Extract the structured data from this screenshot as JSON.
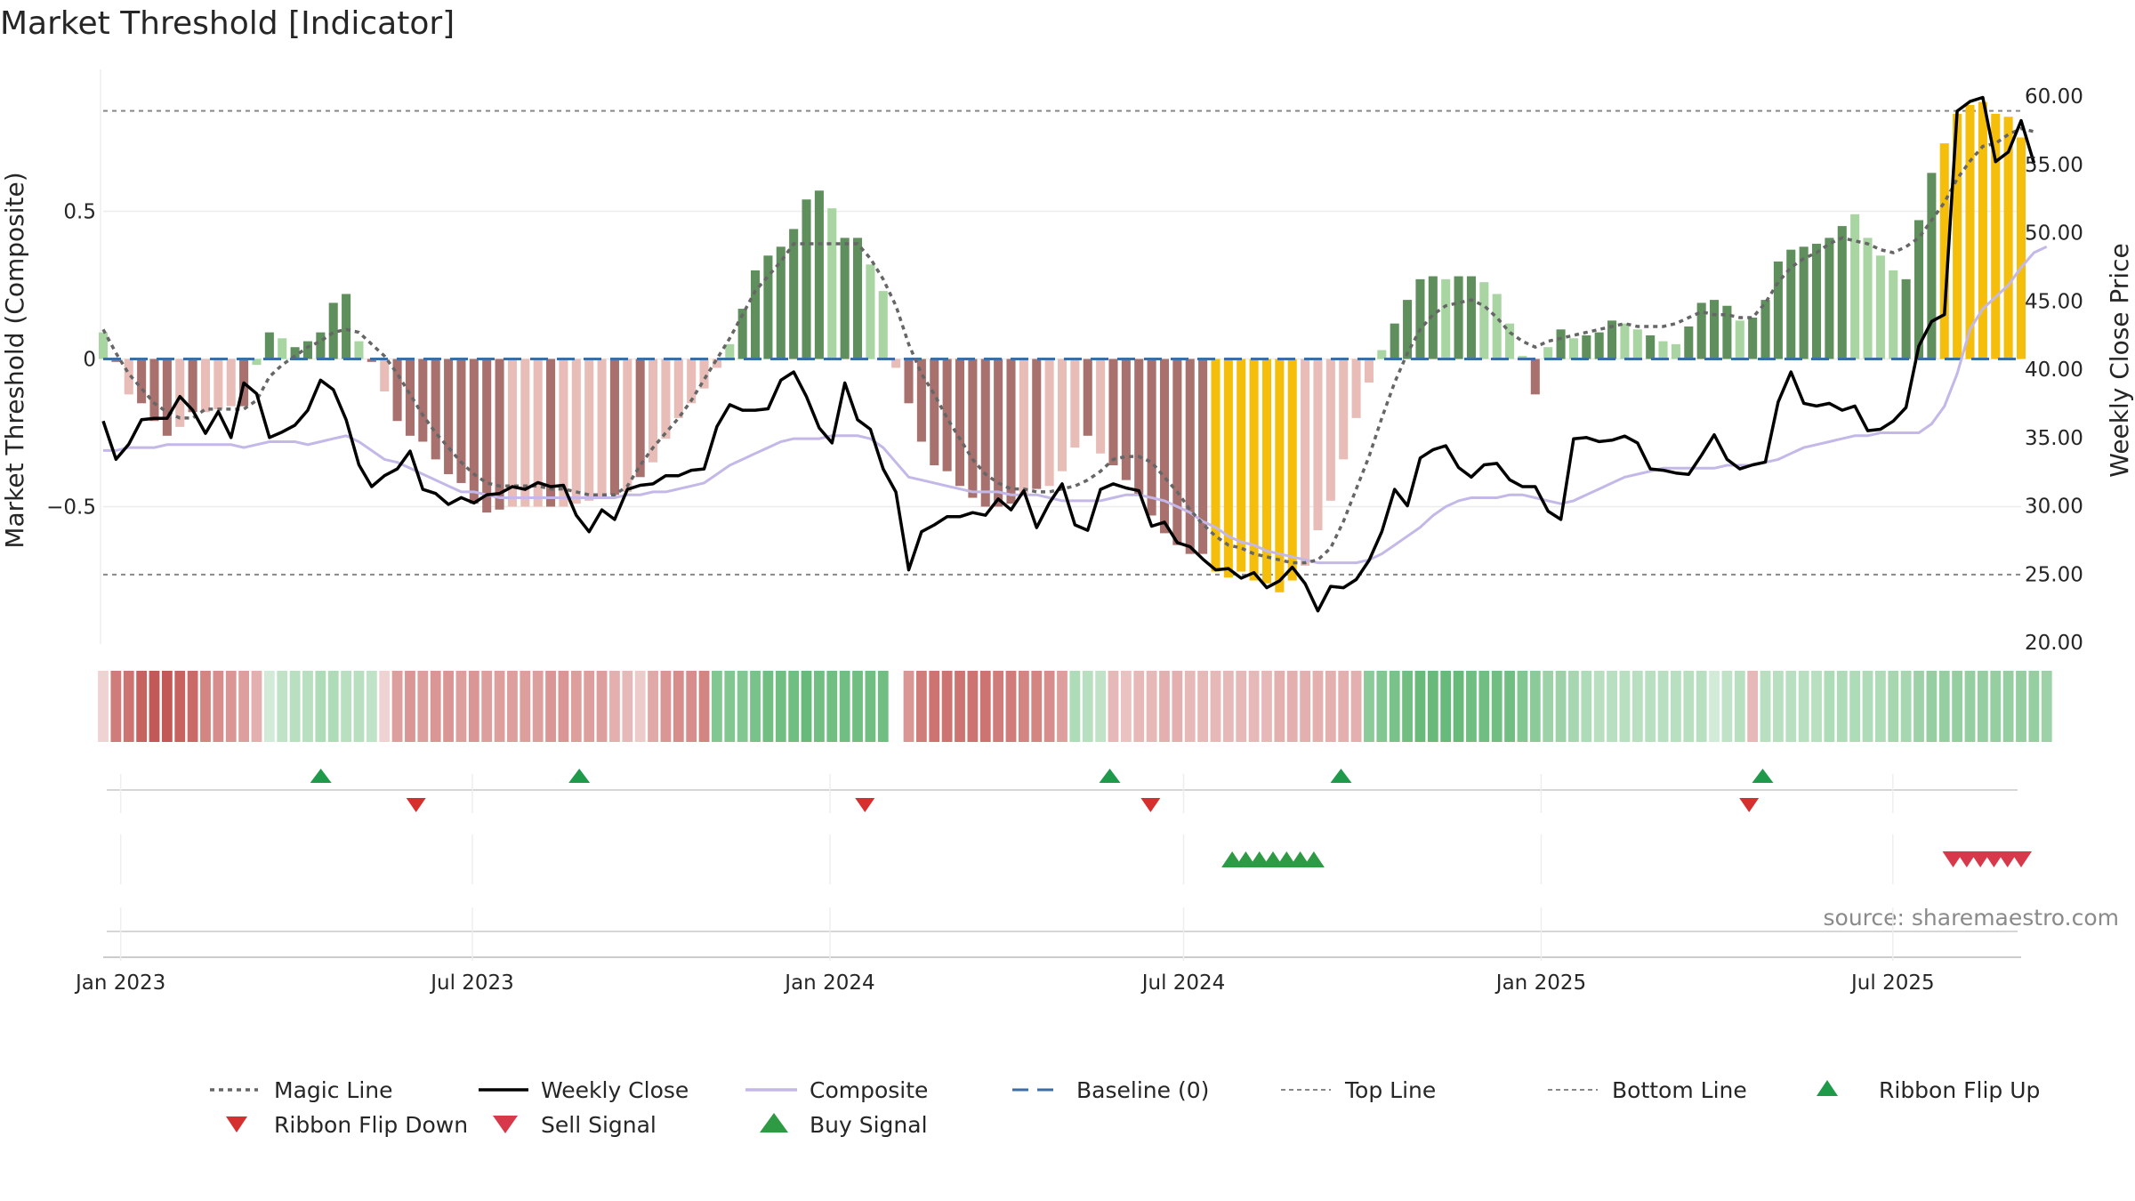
{
  "chart_data": {
    "type": "bar",
    "title": "Market Threshold [Indicator]",
    "ylabel_left": "Market Threshold (Composite)",
    "ylabel_right": "Weekly Close Price",
    "source": "source: sharemaestro.com",
    "x_start": "2022-12-23",
    "x_end": "2025-09-05",
    "xticks": [
      {
        "date": "2023-01-01",
        "label": "Jan 2023"
      },
      {
        "date": "2023-07-01",
        "label": "Jul 2023"
      },
      {
        "date": "2024-01-01",
        "label": "Jan 2024"
      },
      {
        "date": "2024-07-01",
        "label": "Jul 2024"
      },
      {
        "date": "2025-01-01",
        "label": "Jan 2025"
      },
      {
        "date": "2025-07-01",
        "label": "Jul 2025"
      }
    ],
    "ylim_left": [
      -0.98,
      0.98
    ],
    "yticks_left": [
      {
        "value": 0.5,
        "label": "0.5"
      },
      {
        "value": 0,
        "label": "0"
      },
      {
        "value": -0.5,
        "label": "−0.5"
      }
    ],
    "ylim_right": [
      20,
      60
    ],
    "yticks_right": [
      {
        "value": 60,
        "label": "60.00"
      },
      {
        "value": 55,
        "label": "55.00"
      },
      {
        "value": 50,
        "label": "50.00"
      },
      {
        "value": 45,
        "label": "45.00"
      },
      {
        "value": 40,
        "label": "40.00"
      },
      {
        "value": 35,
        "label": "35.00"
      },
      {
        "value": 30,
        "label": "30.00"
      },
      {
        "value": 25,
        "label": "25.00"
      },
      {
        "value": 20,
        "label": "20.00"
      }
    ],
    "top_line": 0.84,
    "bottom_line": -0.73,
    "colors": {
      "dark_green": "#5f8f5c",
      "light_green": "#a8d5a2",
      "dark_red": "#a8716e",
      "light_red": "#e8bdb8",
      "yellow": "#f5be0b",
      "composite": "#c3b8e8",
      "magic": "#666666",
      "close": "#000000",
      "baseline": "#3a6ea5",
      "flip_up": "#1f9a4a",
      "flip_down": "#d62f2f",
      "sell": "#d8394a",
      "buy": "#2e9a44"
    },
    "composite_bars": [
      0.09,
      -0.01,
      -0.12,
      -0.15,
      -0.21,
      -0.26,
      -0.23,
      -0.18,
      -0.18,
      -0.17,
      -0.16,
      -0.16,
      -0.02,
      0.09,
      0.07,
      0.04,
      0.06,
      0.09,
      0.19,
      0.22,
      0.06,
      -0.01,
      -0.11,
      -0.21,
      -0.26,
      -0.28,
      -0.34,
      -0.39,
      -0.42,
      -0.49,
      -0.52,
      -0.51,
      -0.5,
      -0.5,
      -0.5,
      -0.5,
      -0.5,
      -0.49,
      -0.48,
      -0.47,
      -0.46,
      -0.45,
      -0.4,
      -0.35,
      -0.27,
      -0.2,
      -0.15,
      -0.1,
      -0.03,
      0.05,
      0.17,
      0.3,
      0.35,
      0.38,
      0.44,
      0.54,
      0.57,
      0.51,
      0.41,
      0.41,
      0.32,
      0.23,
      -0.03,
      -0.15,
      -0.28,
      -0.36,
      -0.38,
      -0.43,
      -0.47,
      -0.5,
      -0.5,
      -0.49,
      -0.46,
      -0.44,
      -0.43,
      -0.38,
      -0.3,
      -0.26,
      -0.32,
      -0.36,
      -0.41,
      -0.46,
      -0.53,
      -0.59,
      -0.63,
      -0.66,
      -0.66,
      -0.72,
      -0.74,
      -0.72,
      -0.75,
      -0.76,
      -0.79,
      -0.75,
      -0.7,
      -0.58,
      -0.48,
      -0.34,
      -0.2,
      -0.08,
      0.03,
      0.12,
      0.2,
      0.27,
      0.28,
      0.27,
      0.28,
      0.28,
      0.26,
      0.22,
      0.12,
      0.01,
      -0.12,
      0.04,
      0.1,
      0.07,
      0.08,
      0.09,
      0.13,
      0.12,
      0.1,
      0.08,
      0.06,
      0.05,
      0.11,
      0.19,
      0.2,
      0.18,
      0.13,
      0.14,
      0.2,
      0.33,
      0.37,
      0.38,
      0.39,
      0.41,
      0.45,
      0.49,
      0.41,
      0.35,
      0.3,
      0.27,
      0.47,
      0.63,
      0.73,
      0.83,
      0.86,
      0.87,
      0.83,
      0.82,
      0.75
    ],
    "bar_classes": [
      "lg",
      "dr",
      "lr",
      "dr",
      "dr",
      "dr",
      "lr",
      "dr",
      "lr",
      "lr",
      "lr",
      "dr",
      "lg",
      "dg",
      "lg",
      "dg",
      "dg",
      "dg",
      "dg",
      "dg",
      "lg",
      "dr",
      "lr",
      "dr",
      "dr",
      "dr",
      "dr",
      "dr",
      "dr",
      "dr",
      "dr",
      "dr",
      "lr",
      "lr",
      "lr",
      "dr",
      "lr",
      "lr",
      "lr",
      "lr",
      "dr",
      "lr",
      "dr",
      "lr",
      "lr",
      "lr",
      "lr",
      "lr",
      "lr",
      "lg",
      "dg",
      "dg",
      "dg",
      "dg",
      "dg",
      "dg",
      "dg",
      "lg",
      "dg",
      "dg",
      "lg",
      "lg",
      "lr",
      "dr",
      "dr",
      "dr",
      "dr",
      "dr",
      "dr",
      "dr",
      "dr",
      "dr",
      "lr",
      "dr",
      "lr",
      "lr",
      "lr",
      "dr",
      "lr",
      "dr",
      "dr",
      "dr",
      "dr",
      "dr",
      "dr",
      "dr",
      "dr",
      "y",
      "y",
      "y",
      "y",
      "y",
      "y",
      "y",
      "lr",
      "lr",
      "lr",
      "lr",
      "lr",
      "lr",
      "lg",
      "dg",
      "dg",
      "dg",
      "dg",
      "lg",
      "dg",
      "dg",
      "lg",
      "lg",
      "lg",
      "lg",
      "dr",
      "lg",
      "dg",
      "lg",
      "dg",
      "dg",
      "dg",
      "lg",
      "lg",
      "dg",
      "lg",
      "lg",
      "dg",
      "dg",
      "dg",
      "dg",
      "lg",
      "dg",
      "dg",
      "dg",
      "dg",
      "dg",
      "dg",
      "dg",
      "dg",
      "lg",
      "lg",
      "lg",
      "lg",
      "dg",
      "dg",
      "dg",
      "y",
      "y",
      "y",
      "y",
      "y",
      "y",
      "y",
      "lg"
    ],
    "weekly_close": [
      36.2,
      33.4,
      34.5,
      36.3,
      36.4,
      36.4,
      38.0,
      37.0,
      35.3,
      36.9,
      35.0,
      39.0,
      38.2,
      35.0,
      35.4,
      35.9,
      37.0,
      39.2,
      38.5,
      36.3,
      33.0,
      31.4,
      32.2,
      32.7,
      34.0,
      31.2,
      30.9,
      30.1,
      30.6,
      30.2,
      30.8,
      30.9,
      31.4,
      31.2,
      31.7,
      31.4,
      31.5,
      29.3,
      28.1,
      29.7,
      29.0,
      31.2,
      31.5,
      31.6,
      32.2,
      32.2,
      32.6,
      32.7,
      35.8,
      37.4,
      37.0,
      37.0,
      37.1,
      39.2,
      39.8,
      38.0,
      35.7,
      34.6,
      39.0,
      36.3,
      35.6,
      32.7,
      31.0,
      25.3,
      28.1,
      28.6,
      29.2,
      29.2,
      29.5,
      29.3,
      30.5,
      29.7,
      31.1,
      28.4,
      30.2,
      31.6,
      28.6,
      28.2,
      31.2,
      31.6,
      31.3,
      31.1,
      28.5,
      28.8,
      27.3,
      27.0,
      26.1,
      25.3,
      25.4,
      24.7,
      25.1,
      24.0,
      24.5,
      25.5,
      24.3,
      22.3,
      24.1,
      24.0,
      24.6,
      26.0,
      28.1,
      31.2,
      30.0,
      33.5,
      34.1,
      34.4,
      32.8,
      32.1,
      33.0,
      33.1,
      31.9,
      31.4,
      31.4,
      29.6,
      29.0,
      34.9,
      35.0,
      34.7,
      34.8,
      35.1,
      34.6,
      32.7,
      32.6,
      32.4,
      32.3,
      33.7,
      35.2,
      33.4,
      32.7,
      33.0,
      33.2,
      37.6,
      39.8,
      37.5,
      37.3,
      37.5,
      37.0,
      37.3,
      35.5,
      35.6,
      36.2,
      37.2,
      41.7,
      43.5,
      44.0,
      58.9,
      59.6,
      59.9,
      55.2,
      55.9,
      58.2,
      55.1
    ],
    "composite_line": [
      -0.31,
      -0.31,
      -0.3,
      -0.3,
      -0.3,
      -0.29,
      -0.29,
      -0.29,
      -0.29,
      -0.29,
      -0.29,
      -0.3,
      -0.29,
      -0.28,
      -0.28,
      -0.28,
      -0.29,
      -0.28,
      -0.27,
      -0.26,
      -0.28,
      -0.31,
      -0.34,
      -0.35,
      -0.37,
      -0.39,
      -0.41,
      -0.43,
      -0.45,
      -0.45,
      -0.46,
      -0.47,
      -0.47,
      -0.47,
      -0.47,
      -0.47,
      -0.47,
      -0.47,
      -0.47,
      -0.47,
      -0.47,
      -0.46,
      -0.46,
      -0.45,
      -0.45,
      -0.44,
      -0.43,
      -0.42,
      -0.39,
      -0.36,
      -0.34,
      -0.32,
      -0.3,
      -0.28,
      -0.27,
      -0.27,
      -0.27,
      -0.26,
      -0.26,
      -0.26,
      -0.27,
      -0.3,
      -0.35,
      -0.4,
      -0.41,
      -0.42,
      -0.43,
      -0.44,
      -0.45,
      -0.45,
      -0.45,
      -0.46,
      -0.46,
      -0.46,
      -0.47,
      -0.48,
      -0.48,
      -0.48,
      -0.48,
      -0.47,
      -0.46,
      -0.46,
      -0.47,
      -0.48,
      -0.5,
      -0.52,
      -0.55,
      -0.57,
      -0.6,
      -0.62,
      -0.63,
      -0.65,
      -0.66,
      -0.67,
      -0.68,
      -0.69,
      -0.69,
      -0.69,
      -0.69,
      -0.68,
      -0.66,
      -0.63,
      -0.6,
      -0.57,
      -0.53,
      -0.5,
      -0.48,
      -0.47,
      -0.47,
      -0.47,
      -0.46,
      -0.46,
      -0.47,
      -0.48,
      -0.49,
      -0.48,
      -0.46,
      -0.44,
      -0.42,
      -0.4,
      -0.39,
      -0.38,
      -0.37,
      -0.37,
      -0.37,
      -0.37,
      -0.37,
      -0.36,
      -0.36,
      -0.36,
      -0.35,
      -0.34,
      -0.32,
      -0.3,
      -0.29,
      -0.28,
      -0.27,
      -0.26,
      -0.26,
      -0.25,
      -0.25,
      -0.25,
      -0.25,
      -0.22,
      -0.16,
      -0.05,
      0.1,
      0.17,
      0.21,
      0.25,
      0.31,
      0.36,
      0.38
    ],
    "magic_line": [
      0.1,
      0.02,
      -0.05,
      -0.1,
      -0.15,
      -0.18,
      -0.2,
      -0.2,
      -0.17,
      -0.17,
      -0.17,
      -0.17,
      -0.14,
      -0.06,
      -0.02,
      0.01,
      0.04,
      0.06,
      0.09,
      0.1,
      0.09,
      0.05,
      0.01,
      -0.05,
      -0.12,
      -0.19,
      -0.25,
      -0.3,
      -0.35,
      -0.39,
      -0.42,
      -0.43,
      -0.43,
      -0.43,
      -0.43,
      -0.44,
      -0.44,
      -0.45,
      -0.46,
      -0.46,
      -0.46,
      -0.43,
      -0.36,
      -0.3,
      -0.25,
      -0.2,
      -0.14,
      -0.07,
      0.0,
      0.07,
      0.15,
      0.23,
      0.28,
      0.33,
      0.39,
      0.39,
      0.39,
      0.39,
      0.39,
      0.39,
      0.34,
      0.27,
      0.18,
      0.05,
      -0.05,
      -0.12,
      -0.2,
      -0.27,
      -0.34,
      -0.39,
      -0.42,
      -0.44,
      -0.44,
      -0.45,
      -0.45,
      -0.44,
      -0.43,
      -0.41,
      -0.38,
      -0.34,
      -0.33,
      -0.33,
      -0.35,
      -0.4,
      -0.45,
      -0.51,
      -0.56,
      -0.6,
      -0.63,
      -0.64,
      -0.66,
      -0.67,
      -0.68,
      -0.69,
      -0.69,
      -0.68,
      -0.64,
      -0.55,
      -0.44,
      -0.33,
      -0.2,
      -0.08,
      0.02,
      0.1,
      0.15,
      0.18,
      0.19,
      0.2,
      0.18,
      0.14,
      0.09,
      0.06,
      0.04,
      0.06,
      0.07,
      0.08,
      0.09,
      0.1,
      0.11,
      0.12,
      0.11,
      0.11,
      0.11,
      0.12,
      0.14,
      0.16,
      0.15,
      0.15,
      0.14,
      0.14,
      0.19,
      0.26,
      0.31,
      0.34,
      0.36,
      0.39,
      0.41,
      0.4,
      0.39,
      0.37,
      0.36,
      0.38,
      0.41,
      0.47,
      0.53,
      0.61,
      0.67,
      0.72,
      0.73,
      0.76,
      0.78,
      0.77
    ],
    "ribbon_values": [
      0.15,
      0.65,
      0.7,
      0.8,
      0.85,
      0.85,
      0.8,
      0.75,
      0.6,
      0.55,
      0.5,
      0.45,
      0.35,
      0.15,
      0.25,
      0.3,
      0.3,
      0.35,
      0.35,
      0.3,
      0.3,
      0.25,
      0.15,
      0.45,
      0.5,
      0.45,
      0.5,
      0.5,
      0.45,
      0.5,
      0.45,
      0.45,
      0.45,
      0.45,
      0.45,
      0.5,
      0.5,
      0.45,
      0.45,
      0.45,
      0.35,
      0.3,
      0.2,
      0.4,
      0.5,
      0.55,
      0.55,
      0.6,
      0.6,
      0.6,
      0.6,
      0.65,
      0.7,
      0.7,
      0.7,
      0.75,
      0.7,
      0.7,
      0.7,
      0.7,
      0.7,
      0.7,
      0.15,
      0.5,
      0.65,
      0.7,
      0.7,
      0.7,
      0.7,
      0.7,
      0.65,
      0.65,
      0.6,
      0.6,
      0.55,
      0.45,
      0.35,
      0.3,
      0.25,
      0.3,
      0.25,
      0.3,
      0.3,
      0.35,
      0.35,
      0.3,
      0.3,
      0.3,
      0.3,
      0.3,
      0.3,
      0.3,
      0.35,
      0.35,
      0.35,
      0.35,
      0.35,
      0.35,
      0.35,
      0.55,
      0.6,
      0.65,
      0.7,
      0.75,
      0.75,
      0.75,
      0.75,
      0.7,
      0.7,
      0.7,
      0.7,
      0.6,
      0.55,
      0.45,
      0.45,
      0.4,
      0.35,
      0.3,
      0.3,
      0.3,
      0.3,
      0.3,
      0.3,
      0.3,
      0.3,
      0.3,
      0.15,
      0.25,
      0.3,
      0.3,
      0.3,
      0.3,
      0.3,
      0.3,
      0.3,
      0.35,
      0.35,
      0.35,
      0.35,
      0.35,
      0.4,
      0.4,
      0.45,
      0.5,
      0.5,
      0.5,
      0.5,
      0.5,
      0.5,
      0.5,
      0.5,
      0.5,
      0.45
    ],
    "ribbon_signs": [
      -1,
      -1,
      -1,
      -1,
      -1,
      -1,
      -1,
      -1,
      -1,
      -1,
      -1,
      -1,
      -1,
      1,
      1,
      1,
      1,
      1,
      1,
      1,
      1,
      1,
      -1,
      -1,
      -1,
      -1,
      -1,
      -1,
      -1,
      -1,
      -1,
      -1,
      -1,
      -1,
      -1,
      -1,
      -1,
      -1,
      -1,
      -1,
      -1,
      -1,
      -1,
      -1,
      -1,
      -1,
      -1,
      -1,
      1,
      1,
      1,
      1,
      1,
      1,
      1,
      1,
      1,
      1,
      1,
      1,
      1,
      1,
      0,
      -1,
      -1,
      -1,
      -1,
      -1,
      -1,
      -1,
      -1,
      -1,
      -1,
      -1,
      -1,
      -1,
      1,
      1,
      1,
      -1,
      -1,
      -1,
      -1,
      -1,
      -1,
      -1,
      -1,
      -1,
      -1,
      -1,
      -1,
      -1,
      -1,
      -1,
      -1,
      -1,
      -1,
      -1,
      -1,
      1,
      1,
      1,
      1,
      1,
      1,
      1,
      1,
      1,
      1,
      1,
      1,
      1,
      1,
      1,
      1,
      1,
      1,
      1,
      1,
      1,
      1,
      1,
      1,
      1,
      1,
      1,
      1,
      1,
      1,
      -1,
      1,
      1,
      1,
      1,
      1,
      1,
      1,
      1,
      1,
      1,
      1,
      1,
      1,
      1,
      1,
      1,
      1,
      1,
      1,
      1,
      1,
      1,
      1,
      1,
      1,
      1
    ],
    "ribbon_flip_up": [
      "2023-04-14",
      "2023-08-25",
      "2024-05-24",
      "2024-09-20",
      "2025-04-25"
    ],
    "ribbon_flip_down": [
      "2023-06-02",
      "2024-01-19",
      "2024-06-14",
      "2025-04-18"
    ],
    "buy_signal": [
      "2024-07-26",
      "2024-08-02",
      "2024-08-09",
      "2024-08-16",
      "2024-08-23",
      "2024-08-30",
      "2024-09-06"
    ],
    "sell_signal": [
      "2025-08-01",
      "2025-08-08",
      "2025-08-15",
      "2025-08-22",
      "2025-08-29",
      "2025-09-05"
    ],
    "legend": [
      {
        "key": "magic",
        "label": "Magic Line"
      },
      {
        "key": "close",
        "label": "Weekly Close"
      },
      {
        "key": "composite",
        "label": "Composite"
      },
      {
        "key": "baseline",
        "label": "Baseline (0)"
      },
      {
        "key": "top",
        "label": "Top Line"
      },
      {
        "key": "bottom",
        "label": "Bottom Line"
      },
      {
        "key": "flip_up",
        "label": "Ribbon Flip Up"
      },
      {
        "key": "flip_down",
        "label": "Ribbon Flip Down"
      },
      {
        "key": "sell",
        "label": "Sell Signal"
      },
      {
        "key": "buy",
        "label": "Buy Signal"
      }
    ]
  }
}
